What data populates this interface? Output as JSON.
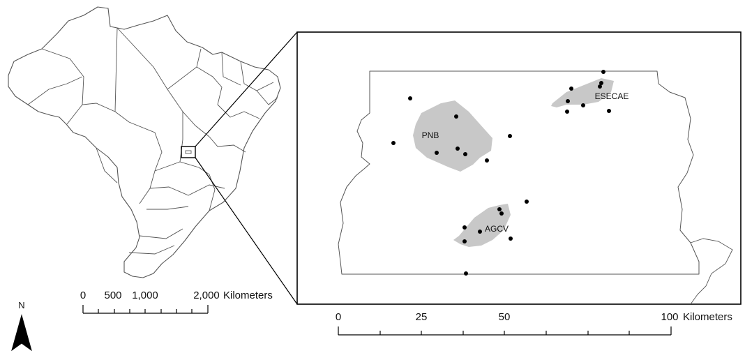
{
  "overview_map": {
    "country": "Brazil",
    "scale_bar": {
      "ticks": [
        "0",
        "500",
        "1,000",
        "2,000"
      ],
      "unit": "Kilometers"
    },
    "north_arrow": {
      "label": "N"
    }
  },
  "inset_map": {
    "areas": [
      {
        "label": "PNB"
      },
      {
        "label": "ESECAE"
      },
      {
        "label": "AGCV"
      }
    ],
    "sample_point_count": 24,
    "scale_bar": {
      "ticks": [
        "0",
        "25",
        "50",
        "100"
      ],
      "unit": "Kilometers"
    }
  },
  "colors": {
    "protected_area_fill": "#c8c8c8",
    "boundary_stroke": "#555555",
    "point_fill": "#000000"
  }
}
